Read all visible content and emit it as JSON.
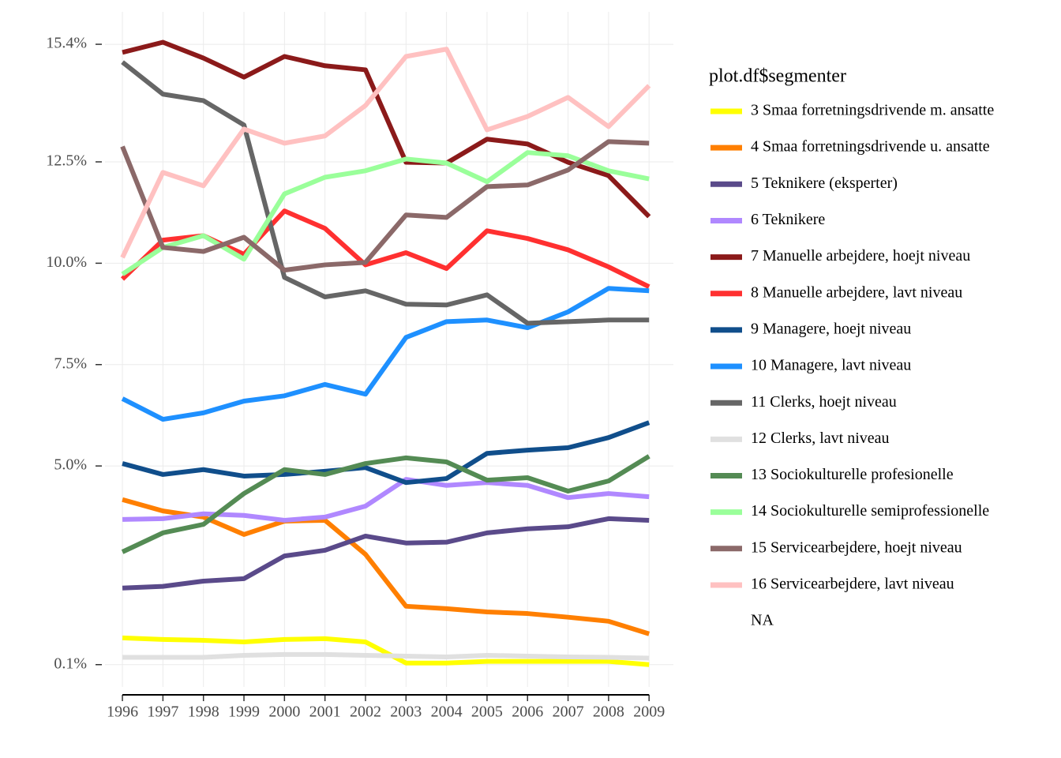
{
  "chart_data": {
    "type": "line",
    "x": [
      1996,
      1997,
      1998,
      1999,
      2000,
      2001,
      2002,
      2003,
      2004,
      2005,
      2006,
      2007,
      2008,
      2009
    ],
    "xlim": [
      1995.57,
      2009.6
    ],
    "xticks": [
      1996,
      1997,
      1998,
      1999,
      2000,
      2001,
      2002,
      2003,
      2004,
      2005,
      2006,
      2007,
      2008,
      2009
    ],
    "ylim": [
      -0.45,
      16.2
    ],
    "yticks": [
      {
        "value": 0.1,
        "label": "0.1%"
      },
      {
        "value": 5.0,
        "label": "5.0%"
      },
      {
        "value": 7.5,
        "label": "7.5%"
      },
      {
        "value": 10.0,
        "label": "10.0%"
      },
      {
        "value": 12.5,
        "label": "12.5%"
      },
      {
        "value": 15.4,
        "label": "15.4%"
      }
    ],
    "grid": true,
    "legend": {
      "title": "plot.df$segmenter",
      "extra_entries": [
        "NA"
      ]
    },
    "series": [
      {
        "name": "3 Smaa forretningsdrivende m. ansatte",
        "color": "#ffff00",
        "values": [
          0.76,
          0.72,
          0.7,
          0.66,
          0.72,
          0.74,
          0.66,
          0.14,
          0.14,
          0.18,
          0.18,
          0.18,
          0.18,
          0.1
        ]
      },
      {
        "name": "4 Smaa forretningsdrivende u. ansatte",
        "color": "#ff7f00",
        "values": [
          4.17,
          3.89,
          3.74,
          3.31,
          3.64,
          3.66,
          2.82,
          1.54,
          1.48,
          1.4,
          1.36,
          1.27,
          1.17,
          0.86
        ]
      },
      {
        "name": "5 Teknikere (eksperter)",
        "color": "#5a4a8a",
        "values": [
          1.99,
          2.03,
          2.16,
          2.22,
          2.78,
          2.92,
          3.27,
          3.1,
          3.12,
          3.35,
          3.45,
          3.5,
          3.7,
          3.66
        ]
      },
      {
        "name": "6 Teknikere",
        "color": "#b088ff",
        "values": [
          3.68,
          3.7,
          3.82,
          3.78,
          3.66,
          3.74,
          4.01,
          4.67,
          4.52,
          4.59,
          4.52,
          4.22,
          4.32,
          4.24
        ]
      },
      {
        "name": "7 Manuelle arbejdere, hoejt niveau",
        "color": "#8b1a1a",
        "values": [
          15.2,
          15.45,
          15.06,
          14.59,
          15.1,
          14.87,
          14.77,
          12.49,
          12.47,
          13.06,
          12.94,
          12.49,
          12.16,
          11.15
        ]
      },
      {
        "name": "8 Manuelle arbejdere, lavt niveau",
        "color": "#ff3030",
        "values": [
          9.61,
          10.57,
          10.68,
          10.22,
          11.29,
          10.86,
          9.96,
          10.26,
          9.87,
          10.8,
          10.61,
          10.33,
          9.91,
          9.42
        ]
      },
      {
        "name": "9 Managere, hoejt niveau",
        "color": "#104e8b",
        "values": [
          5.06,
          4.79,
          4.91,
          4.75,
          4.79,
          4.87,
          4.96,
          4.59,
          4.69,
          5.31,
          5.39,
          5.45,
          5.7,
          6.07
        ]
      },
      {
        "name": "10 Managere, lavt niveau",
        "color": "#1e90ff",
        "values": [
          6.66,
          6.15,
          6.31,
          6.6,
          6.73,
          7.01,
          6.77,
          8.17,
          8.56,
          8.6,
          8.41,
          8.8,
          9.38,
          9.32
        ]
      },
      {
        "name": "11 Clerks, hoejt niveau",
        "color": "#666666",
        "values": [
          14.96,
          14.17,
          14.01,
          13.41,
          9.65,
          9.17,
          9.32,
          8.99,
          8.97,
          9.22,
          8.52,
          8.56,
          8.6,
          8.6
        ]
      },
      {
        "name": "12 Clerks, lavt niveau",
        "color": "#e0e0e0",
        "values": [
          0.28,
          0.28,
          0.28,
          0.33,
          0.35,
          0.35,
          0.33,
          0.31,
          0.29,
          0.33,
          0.31,
          0.29,
          0.28,
          0.26
        ]
      },
      {
        "name": "13 Sociokulturelle profesionelle",
        "color": "#548b54",
        "values": [
          2.88,
          3.35,
          3.56,
          4.32,
          4.91,
          4.79,
          5.06,
          5.2,
          5.1,
          4.65,
          4.71,
          4.38,
          4.63,
          5.24
        ]
      },
      {
        "name": "14 Sociokulturelle semiprofessionelle",
        "color": "#9aff9a",
        "values": [
          9.73,
          10.39,
          10.68,
          10.1,
          11.71,
          12.12,
          12.28,
          12.57,
          12.47,
          12.01,
          12.73,
          12.65,
          12.28,
          12.08
        ]
      },
      {
        "name": "15 Servicearbejdere, hoejt niveau",
        "color": "#8b6969",
        "values": [
          12.88,
          10.39,
          10.29,
          10.64,
          9.83,
          9.96,
          10.02,
          11.19,
          11.13,
          11.89,
          11.93,
          12.3,
          13.0,
          12.96
        ]
      },
      {
        "name": "16 Servicearbejdere, lavt niveau",
        "color": "#ffc1c1",
        "values": [
          10.14,
          12.24,
          11.91,
          13.31,
          12.96,
          13.14,
          13.89,
          15.1,
          15.28,
          13.29,
          13.62,
          14.09,
          13.37,
          14.38
        ]
      }
    ]
  }
}
